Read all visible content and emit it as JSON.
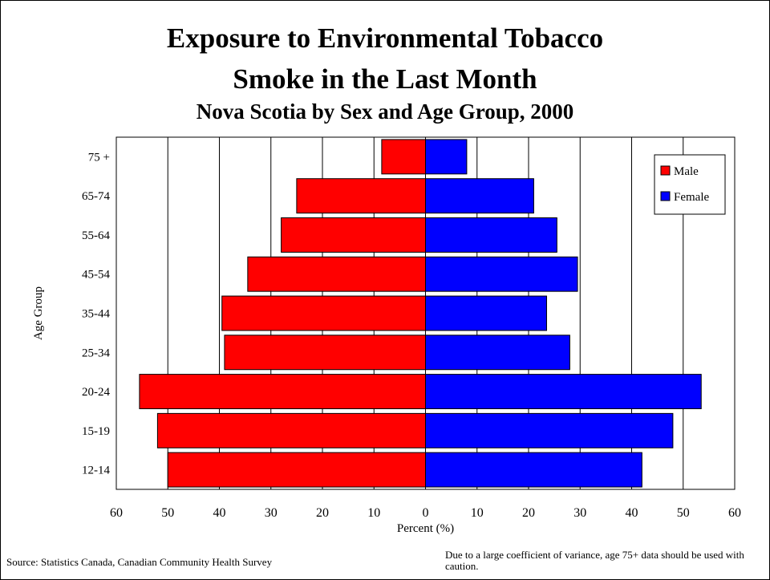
{
  "chart_data": {
    "type": "bar",
    "orientation": "horizontal-population-pyramid",
    "title": "Exposure to Environmental Tobacco Smoke in the Last Month",
    "title_line1": "Exposure to Environmental Tobacco",
    "title_line2": "Smoke in the Last Month",
    "subtitle": "Nova Scotia by Sex and Age Group, 2000",
    "xlabel": "Percent (%)",
    "ylabel": "Age Group",
    "x_ticks": [
      "60",
      "50",
      "40",
      "30",
      "20",
      "10",
      "0",
      "10",
      "20",
      "30",
      "40",
      "50",
      "60"
    ],
    "xlim": [
      -60,
      60
    ],
    "categories": [
      "12-14",
      "15-19",
      "20-24",
      "25-34",
      "35-44",
      "45-54",
      "55-64",
      "65-74",
      "75 +"
    ],
    "series": [
      {
        "name": "Male",
        "color": "#ff0000",
        "values": [
          50,
          52,
          55.5,
          39,
          39.5,
          34.5,
          28,
          25,
          8.5
        ]
      },
      {
        "name": "Female",
        "color": "#0000ff",
        "values": [
          42,
          48,
          53.5,
          28,
          23.5,
          29.5,
          25.5,
          21,
          8
        ]
      }
    ],
    "grid": "vertical",
    "legend_position": "top-right"
  },
  "footer": {
    "source": "Source: Statistics Canada, Canadian Community Health Survey",
    "note": "Due to a large coefficient of variance, age 75+  data should be used with caution."
  }
}
